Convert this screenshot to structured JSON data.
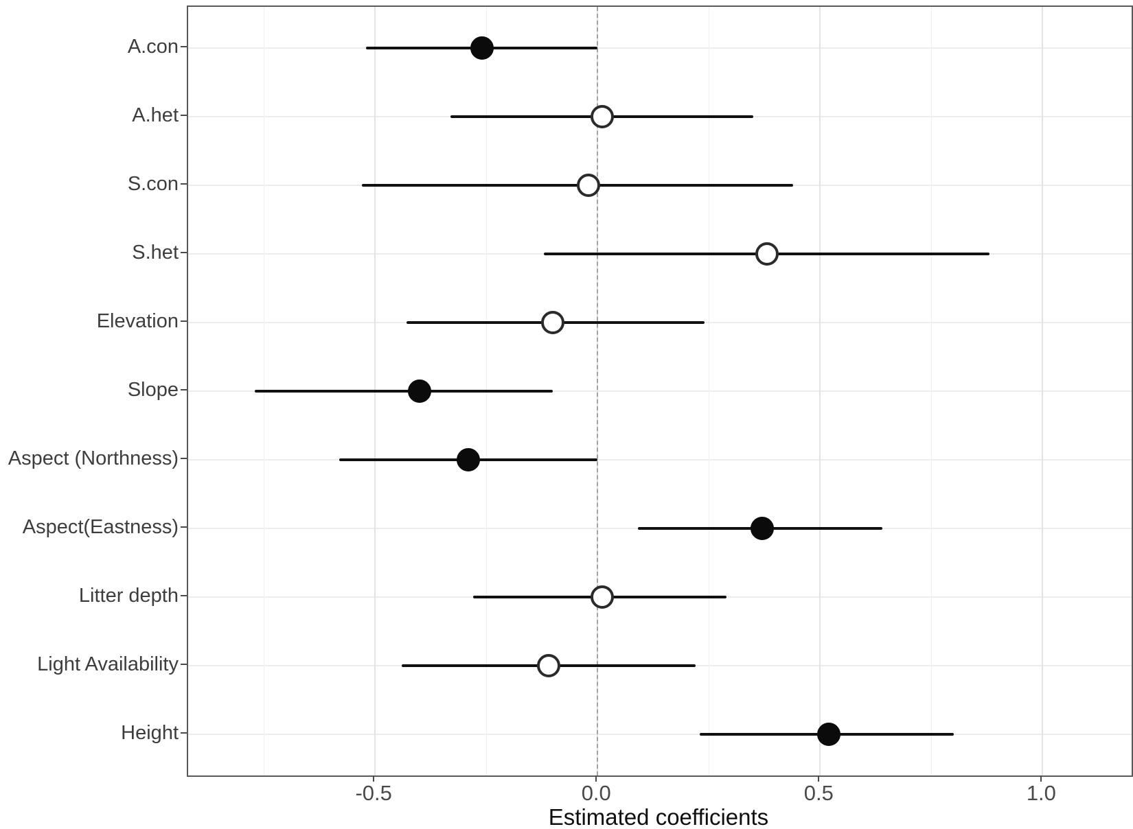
{
  "chart_data": {
    "type": "scatter",
    "subtype": "coefficient-forest-plot",
    "title": "",
    "xlabel": "Estimated coefficients",
    "ylabel": "",
    "xlim": [
      -0.92,
      1.2
    ],
    "x_major_ticks": [
      -0.5,
      0.0,
      0.5,
      1.0
    ],
    "x_major_tick_labels": [
      "-0.5",
      "0.0",
      "0.5",
      "1.0"
    ],
    "x_minor_ticks": [
      -0.75,
      -0.25,
      0.25,
      0.75
    ],
    "zero_reference_line": 0.0,
    "grid": "on",
    "legend": "none",
    "point_fill_colors": {
      "significant": "#0b0b0b",
      "non_significant": "#ffffff"
    },
    "rows": [
      {
        "label": "A.con",
        "estimate": -0.26,
        "ci_low": -0.52,
        "ci_high": 0.0,
        "significant": true
      },
      {
        "label": "A.het",
        "estimate": 0.01,
        "ci_low": -0.33,
        "ci_high": 0.35,
        "significant": false
      },
      {
        "label": "S.con",
        "estimate": -0.02,
        "ci_low": -0.53,
        "ci_high": 0.44,
        "significant": false
      },
      {
        "label": "S.het",
        "estimate": 0.38,
        "ci_low": -0.12,
        "ci_high": 0.88,
        "significant": false
      },
      {
        "label": "Elevation",
        "estimate": -0.1,
        "ci_low": -0.43,
        "ci_high": 0.24,
        "significant": false
      },
      {
        "label": "Slope",
        "estimate": -0.4,
        "ci_low": -0.77,
        "ci_high": -0.1,
        "significant": true
      },
      {
        "label": "Aspect (Northness)",
        "estimate": -0.29,
        "ci_low": -0.58,
        "ci_high": 0.0,
        "significant": true
      },
      {
        "label": "Aspect(Eastness)",
        "estimate": 0.37,
        "ci_low": 0.09,
        "ci_high": 0.64,
        "significant": true
      },
      {
        "label": "Litter depth",
        "estimate": 0.01,
        "ci_low": -0.28,
        "ci_high": 0.29,
        "significant": false
      },
      {
        "label": "Light Availability",
        "estimate": -0.11,
        "ci_low": -0.44,
        "ci_high": 0.22,
        "significant": false
      },
      {
        "label": "Height",
        "estimate": 0.52,
        "ci_low": 0.23,
        "ci_high": 0.8,
        "significant": true
      }
    ]
  }
}
